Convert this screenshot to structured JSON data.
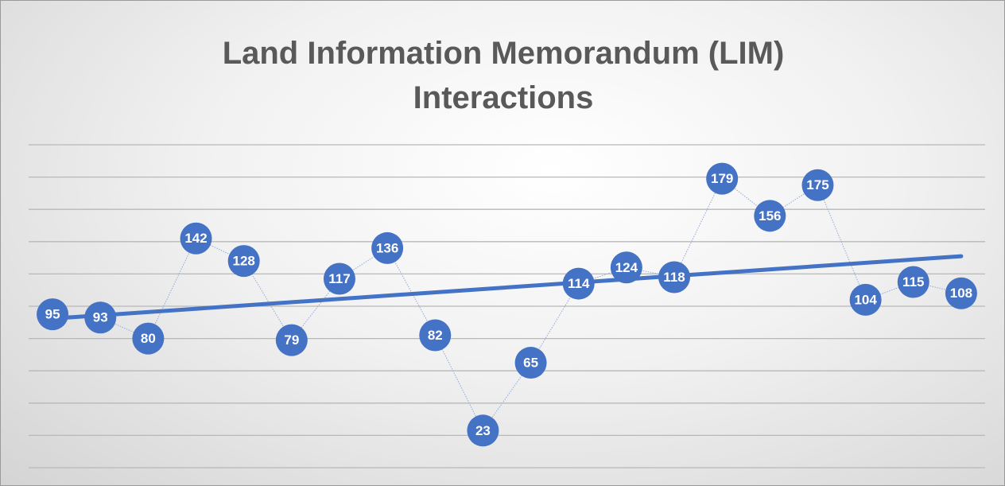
{
  "chart_data": {
    "type": "line",
    "title": "Land Information Memorandum (LIM) Interactions",
    "values": [
      95,
      93,
      80,
      142,
      128,
      79,
      117,
      136,
      82,
      23,
      65,
      114,
      124,
      118,
      179,
      156,
      175,
      104,
      115,
      108
    ],
    "color": "#4472c4",
    "ylim": [
      0,
      200
    ],
    "yticks": [
      0,
      20,
      40,
      60,
      80,
      100,
      120,
      140,
      160,
      180,
      200
    ],
    "grid": true,
    "trendline": true,
    "data_labels": true
  }
}
